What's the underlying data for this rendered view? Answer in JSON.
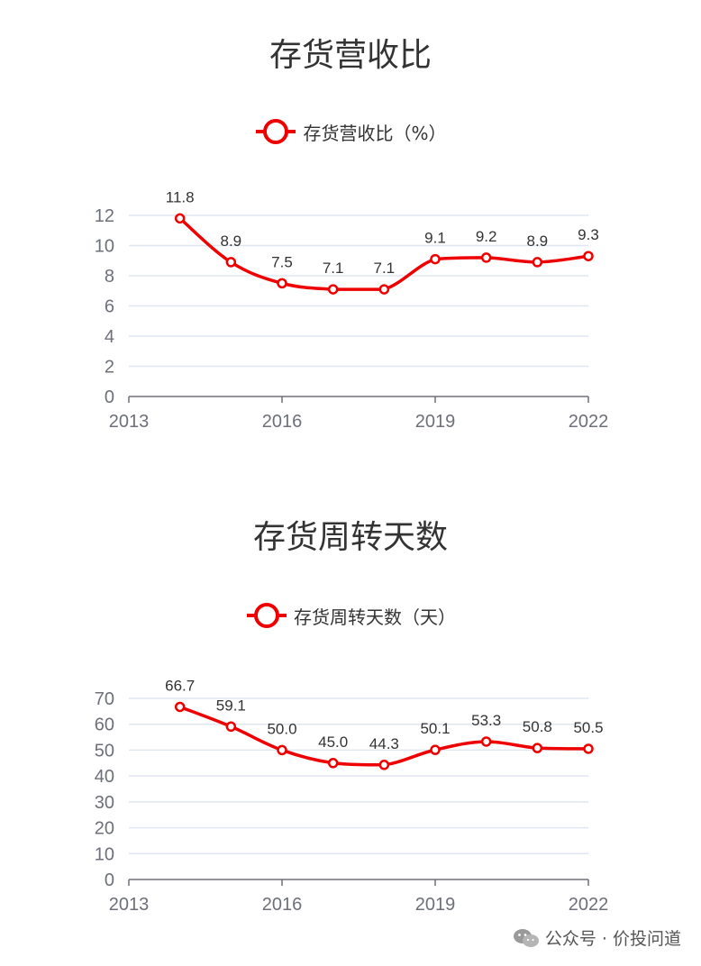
{
  "chart_data": [
    {
      "type": "line",
      "title": "存货营收比",
      "series": [
        {
          "name": "存货营收比（%）",
          "values": [
            11.8,
            8.9,
            7.5,
            7.1,
            7.1,
            9.1,
            9.2,
            8.9,
            9.3
          ]
        }
      ],
      "x": [
        2014,
        2015,
        2016,
        2017,
        2018,
        2019,
        2020,
        2021,
        2022
      ],
      "data_labels": [
        "11.8",
        "8.9",
        "7.5",
        "7.1",
        "7.1",
        "9.1",
        "9.2",
        "8.9",
        "9.3"
      ],
      "xlim": [
        2013,
        2022
      ],
      "x_ticks": [
        "2013",
        "2016",
        "2019",
        "2022"
      ],
      "ylim": [
        0,
        12
      ],
      "y_ticks": [
        "0",
        "2",
        "4",
        "6",
        "8",
        "10",
        "12"
      ],
      "legend_placement": "top-center",
      "grid": true,
      "color": "#ee0000"
    },
    {
      "type": "line",
      "title": "存货周转天数",
      "series": [
        {
          "name": "存货周转天数（天）",
          "values": [
            66.7,
            59.1,
            50.0,
            45.0,
            44.3,
            50.1,
            53.3,
            50.8,
            50.5
          ]
        }
      ],
      "x": [
        2014,
        2015,
        2016,
        2017,
        2018,
        2019,
        2020,
        2021,
        2022
      ],
      "data_labels": [
        "66.7",
        "59.1",
        "50.0",
        "45.0",
        "44.3",
        "50.1",
        "53.3",
        "50.8",
        "50.5"
      ],
      "xlim": [
        2013,
        2022
      ],
      "x_ticks": [
        "2013",
        "2016",
        "2019",
        "2022"
      ],
      "ylim": [
        0,
        70
      ],
      "y_ticks": [
        "0",
        "10",
        "20",
        "30",
        "40",
        "50",
        "60",
        "70"
      ],
      "legend_placement": "top-center",
      "grid": true,
      "color": "#ee0000"
    }
  ],
  "watermark": {
    "icon": "wechat-icon",
    "text": "公众号 · 价投问道"
  }
}
